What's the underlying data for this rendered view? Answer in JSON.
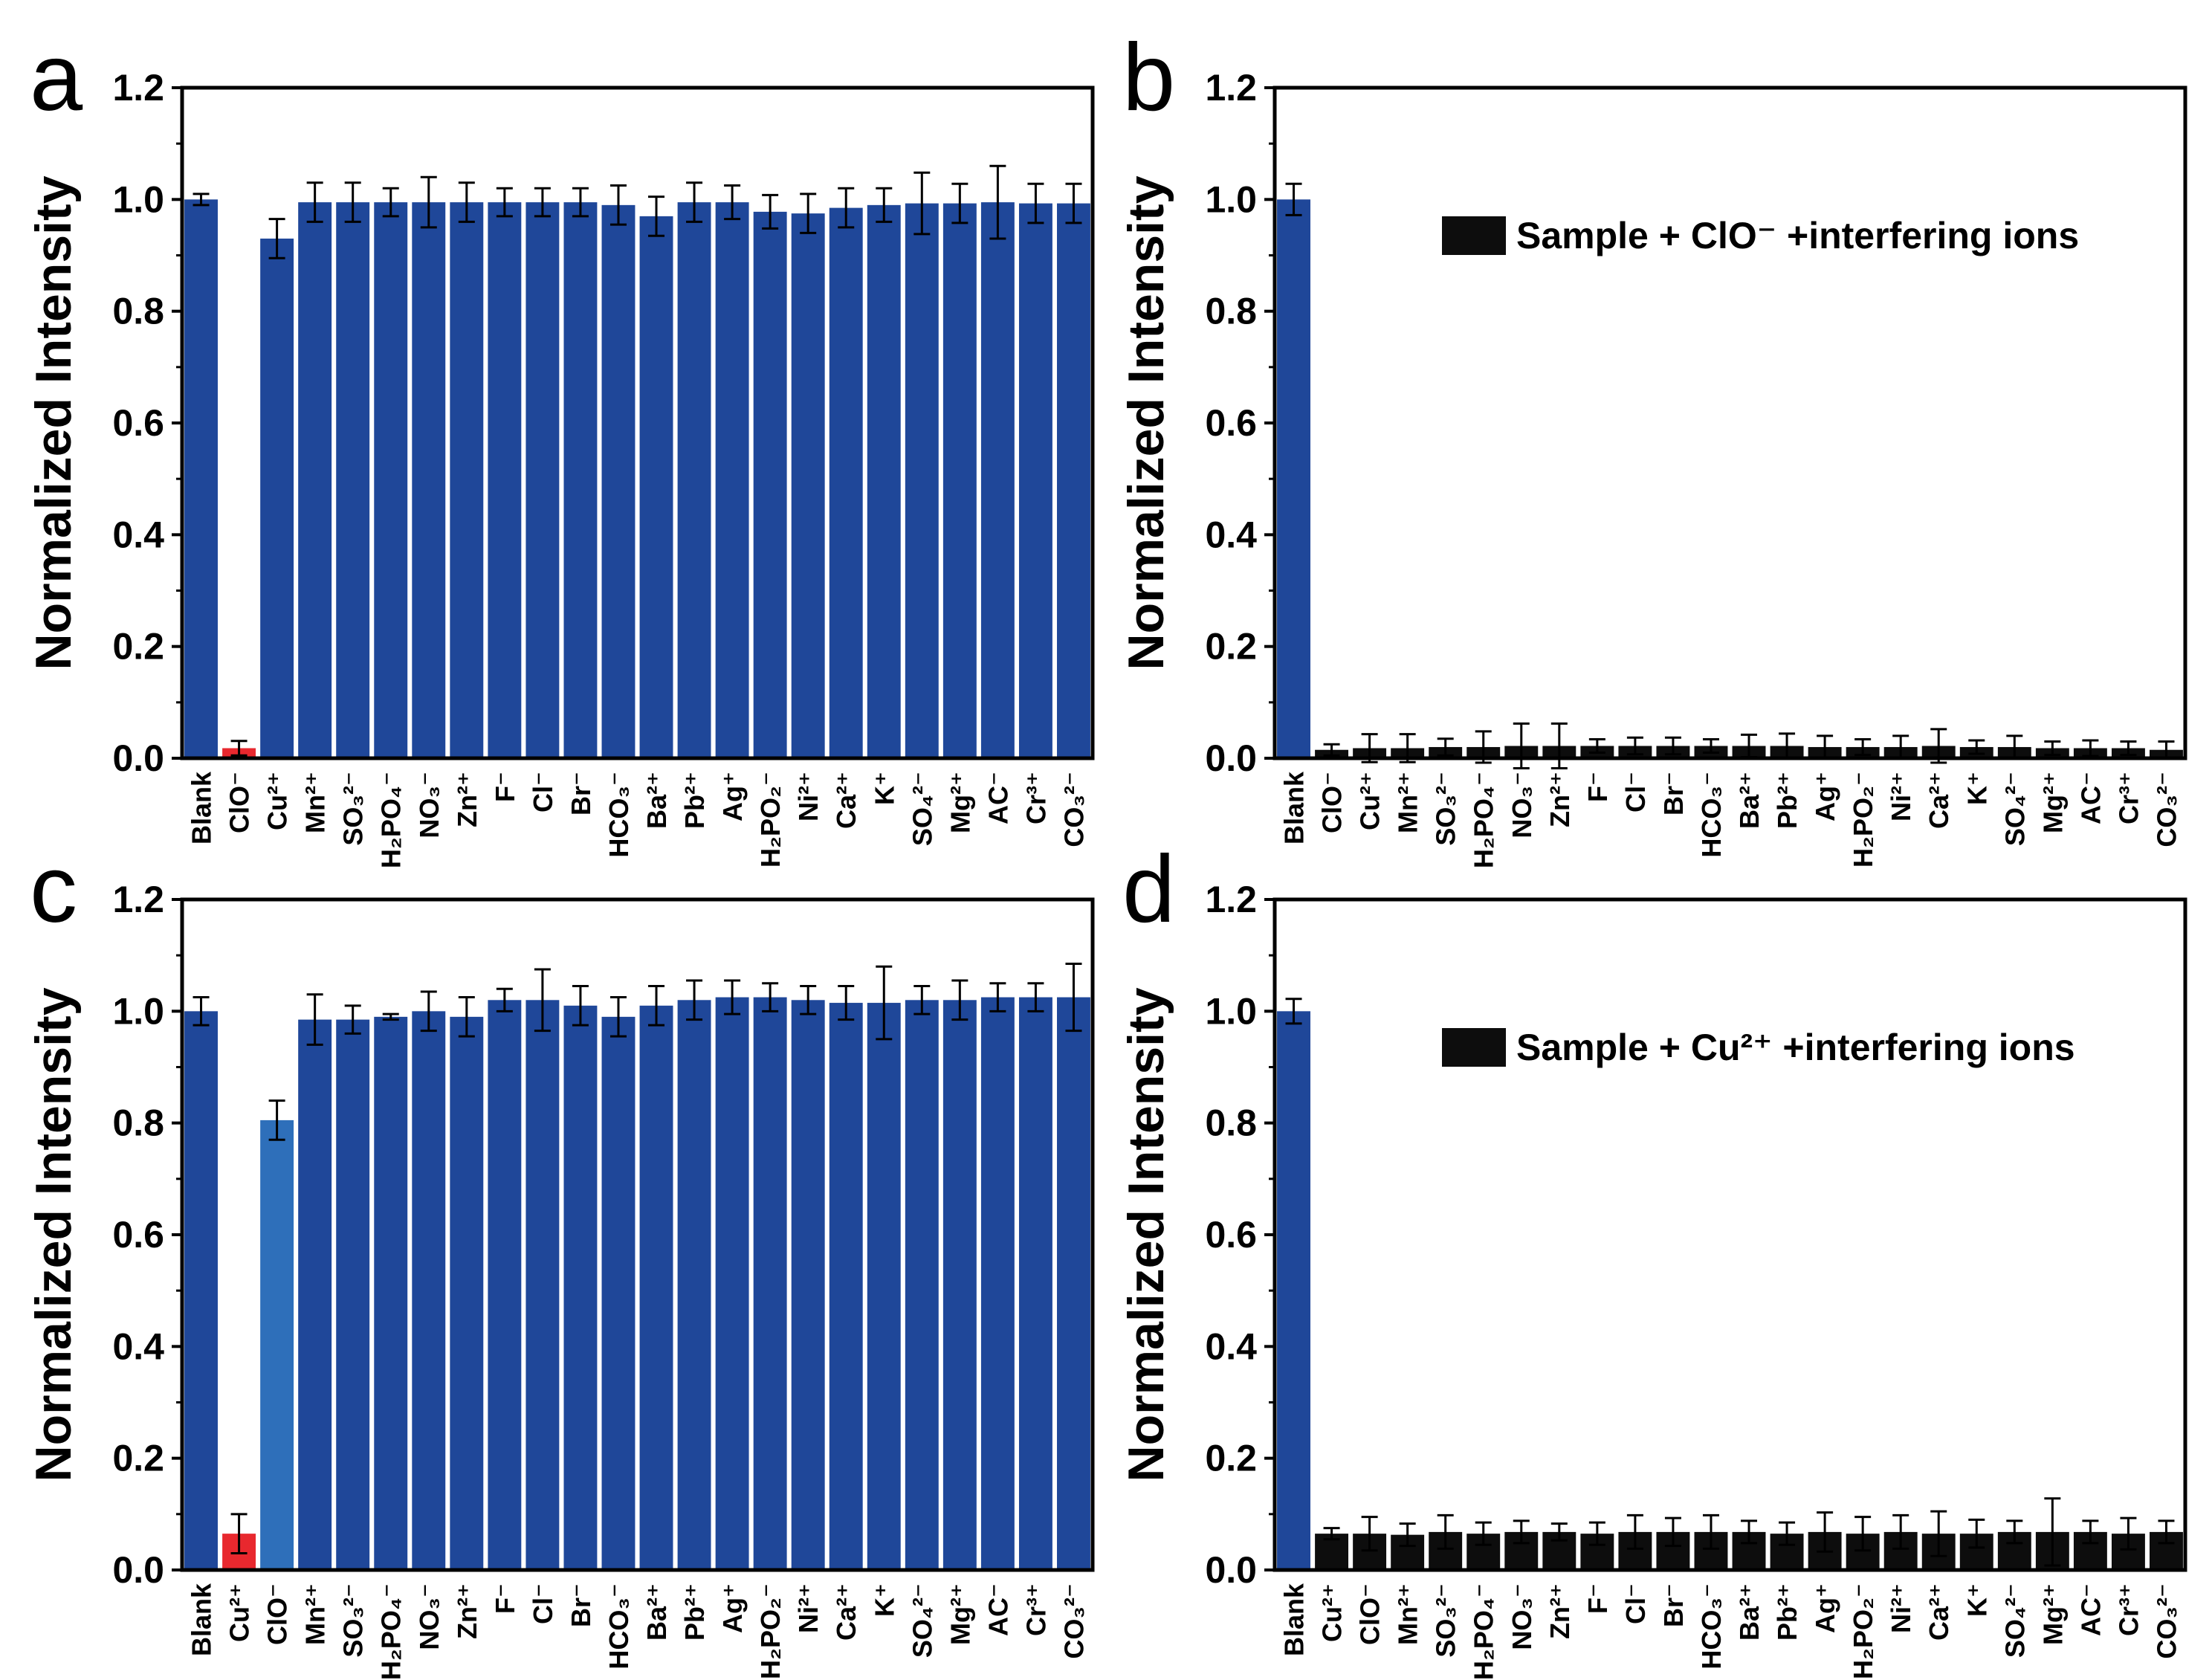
{
  "chart_data": [
    {
      "panel": "a",
      "type": "bar",
      "title": "",
      "xlabel": "",
      "ylabel": "Normalized Intensity",
      "ylim": [
        0,
        1.2
      ],
      "yticks": [
        "0.0",
        "0.2",
        "0.4",
        "0.6",
        "0.8",
        "1.0",
        "1.2"
      ],
      "categories": [
        "Blank",
        "ClO⁻",
        "Cu²⁺",
        "Mn²⁺",
        "SO₃²⁻",
        "H₂PO₄⁻",
        "NO₃⁻",
        "Zn²⁺",
        "F⁻",
        "Cl⁻",
        "Br⁻",
        "HCO₃⁻",
        "Ba²⁺",
        "Pb²⁺",
        "Ag⁺",
        "H₂PO₂⁻",
        "Ni²⁺",
        "Ca²⁺",
        "K⁺",
        "SO₄²⁻",
        "Mg²⁺",
        "AC⁻",
        "Cr³⁺",
        "CO₃²⁻"
      ],
      "values": [
        1.0,
        0.018,
        0.93,
        0.995,
        0.995,
        0.995,
        0.995,
        0.995,
        0.995,
        0.995,
        0.995,
        0.99,
        0.97,
        0.995,
        0.995,
        0.978,
        0.975,
        0.985,
        0.99,
        0.993,
        0.993,
        0.995,
        0.993,
        0.993
      ],
      "errors": [
        0.01,
        0.013,
        0.035,
        0.035,
        0.035,
        0.025,
        0.045,
        0.035,
        0.025,
        0.025,
        0.025,
        0.035,
        0.035,
        0.035,
        0.03,
        0.03,
        0.035,
        0.035,
        0.03,
        0.055,
        0.035,
        0.065,
        0.035,
        0.035
      ],
      "colors": [
        "#1f4799",
        "#e8282e",
        "#1f4799",
        "#1f4799",
        "#1f4799",
        "#1f4799",
        "#1f4799",
        "#1f4799",
        "#1f4799",
        "#1f4799",
        "#1f4799",
        "#1f4799",
        "#1f4799",
        "#1f4799",
        "#1f4799",
        "#1f4799",
        "#1f4799",
        "#1f4799",
        "#1f4799",
        "#1f4799",
        "#1f4799",
        "#1f4799",
        "#1f4799",
        "#1f4799"
      ],
      "legend": null
    },
    {
      "panel": "b",
      "type": "bar",
      "title": "",
      "xlabel": "",
      "ylabel": "Normalized Intensity",
      "ylim": [
        0,
        1.2
      ],
      "yticks": [
        "0.0",
        "0.2",
        "0.4",
        "0.6",
        "0.8",
        "1.0",
        "1.2"
      ],
      "categories": [
        "Blank",
        "ClO⁻",
        "Cu²⁺",
        "Mn²⁺",
        "SO₃²⁻",
        "H₂PO₄⁻",
        "NO₃⁻",
        "Zn²⁺",
        "F⁻",
        "Cl⁻",
        "Br⁻",
        "HCO₃⁻",
        "Ba²⁺",
        "Pb²⁺",
        "Ag⁺",
        "H₂PO₂⁻",
        "Ni²⁺",
        "Ca²⁺",
        "K⁺",
        "SO₄²⁻",
        "Mg²⁺",
        "AC⁻",
        "Cr³⁺",
        "CO₃²⁻"
      ],
      "values": [
        1.0,
        0.015,
        0.018,
        0.018,
        0.02,
        0.02,
        0.022,
        0.022,
        0.022,
        0.022,
        0.022,
        0.022,
        0.022,
        0.022,
        0.02,
        0.02,
        0.02,
        0.022,
        0.02,
        0.02,
        0.018,
        0.018,
        0.018,
        0.015
      ],
      "errors": [
        0.028,
        0.01,
        0.025,
        0.025,
        0.015,
        0.028,
        0.04,
        0.04,
        0.012,
        0.015,
        0.015,
        0.012,
        0.02,
        0.022,
        0.02,
        0.014,
        0.02,
        0.03,
        0.012,
        0.02,
        0.012,
        0.014,
        0.012,
        0.015
      ],
      "colors": [
        "#1f4799",
        "#0d0d0d",
        "#0d0d0d",
        "#0d0d0d",
        "#0d0d0d",
        "#0d0d0d",
        "#0d0d0d",
        "#0d0d0d",
        "#0d0d0d",
        "#0d0d0d",
        "#0d0d0d",
        "#0d0d0d",
        "#0d0d0d",
        "#0d0d0d",
        "#0d0d0d",
        "#0d0d0d",
        "#0d0d0d",
        "#0d0d0d",
        "#0d0d0d",
        "#0d0d0d",
        "#0d0d0d",
        "#0d0d0d",
        "#0d0d0d",
        "#0d0d0d"
      ],
      "legend": {
        "label": "Sample + ClO⁻ +interfering ions",
        "color": "#0d0d0d"
      }
    },
    {
      "panel": "c",
      "type": "bar",
      "title": "",
      "xlabel": "",
      "ylabel": "Normalized Intensity",
      "ylim": [
        0,
        1.2
      ],
      "yticks": [
        "0.0",
        "0.2",
        "0.4",
        "0.6",
        "0.8",
        "1.0",
        "1.2"
      ],
      "categories": [
        "Blank",
        "Cu²⁺",
        "ClO⁻",
        "Mn²⁺",
        "SO₃²⁻",
        "H₂PO₄⁻",
        "NO₃⁻",
        "Zn²⁺",
        "F⁻",
        "Cl⁻",
        "Br⁻",
        "HCO₃⁻",
        "Ba²⁺",
        "Pb²⁺",
        "Ag⁺",
        "H₂PO₂⁻",
        "Ni²⁺",
        "Ca²⁺",
        "K⁺",
        "SO₄²⁻",
        "Mg²⁺",
        "AC⁻",
        "Cr³⁺",
        "CO₃²⁻"
      ],
      "values": [
        1.0,
        0.065,
        0.805,
        0.985,
        0.985,
        0.99,
        1.0,
        0.99,
        1.02,
        1.02,
        1.01,
        0.99,
        1.01,
        1.02,
        1.025,
        1.025,
        1.02,
        1.015,
        1.015,
        1.02,
        1.02,
        1.025,
        1.025,
        1.025
      ],
      "errors": [
        0.025,
        0.035,
        0.035,
        0.045,
        0.025,
        0.005,
        0.035,
        0.035,
        0.02,
        0.055,
        0.035,
        0.035,
        0.035,
        0.035,
        0.03,
        0.025,
        0.025,
        0.03,
        0.065,
        0.025,
        0.035,
        0.025,
        0.025,
        0.06
      ],
      "colors": [
        "#1f4799",
        "#e8282e",
        "#2e6fba",
        "#1f4799",
        "#1f4799",
        "#1f4799",
        "#1f4799",
        "#1f4799",
        "#1f4799",
        "#1f4799",
        "#1f4799",
        "#1f4799",
        "#1f4799",
        "#1f4799",
        "#1f4799",
        "#1f4799",
        "#1f4799",
        "#1f4799",
        "#1f4799",
        "#1f4799",
        "#1f4799",
        "#1f4799",
        "#1f4799",
        "#1f4799"
      ],
      "legend": null
    },
    {
      "panel": "d",
      "type": "bar",
      "title": "",
      "xlabel": "",
      "ylabel": "Normalized Intensity",
      "ylim": [
        0,
        1.2
      ],
      "yticks": [
        "0.0",
        "0.2",
        "0.4",
        "0.6",
        "0.8",
        "1.0",
        "1.2"
      ],
      "categories": [
        "Blank",
        "Cu²⁺",
        "ClO⁻",
        "Mn²⁺",
        "SO₃²⁻",
        "H₂PO₄⁻",
        "NO₃⁻",
        "Zn²⁺",
        "F⁻",
        "Cl⁻",
        "Br⁻",
        "HCO₃⁻",
        "Ba²⁺",
        "Pb²⁺",
        "Ag⁺",
        "H₂PO₂⁻",
        "Ni²⁺",
        "Ca²⁺",
        "K⁺",
        "SO₄²⁻",
        "Mg²⁺",
        "AC⁻",
        "Cr³⁺",
        "CO₃²⁻"
      ],
      "values": [
        1.0,
        0.065,
        0.065,
        0.063,
        0.068,
        0.065,
        0.068,
        0.068,
        0.065,
        0.068,
        0.068,
        0.068,
        0.068,
        0.065,
        0.068,
        0.065,
        0.068,
        0.065,
        0.065,
        0.068,
        0.068,
        0.068,
        0.065,
        0.068
      ],
      "errors": [
        0.022,
        0.01,
        0.03,
        0.02,
        0.03,
        0.02,
        0.02,
        0.015,
        0.02,
        0.03,
        0.025,
        0.03,
        0.02,
        0.02,
        0.035,
        0.03,
        0.03,
        0.04,
        0.025,
        0.02,
        0.06,
        0.02,
        0.028,
        0.02
      ],
      "colors": [
        "#1f4799",
        "#0d0d0d",
        "#0d0d0d",
        "#0d0d0d",
        "#0d0d0d",
        "#0d0d0d",
        "#0d0d0d",
        "#0d0d0d",
        "#0d0d0d",
        "#0d0d0d",
        "#0d0d0d",
        "#0d0d0d",
        "#0d0d0d",
        "#0d0d0d",
        "#0d0d0d",
        "#0d0d0d",
        "#0d0d0d",
        "#0d0d0d",
        "#0d0d0d",
        "#0d0d0d",
        "#0d0d0d",
        "#0d0d0d",
        "#0d0d0d",
        "#0d0d0d"
      ],
      "legend": {
        "label": "Sample + Cu²⁺ +interfering ions",
        "color": "#0d0d0d"
      }
    }
  ]
}
